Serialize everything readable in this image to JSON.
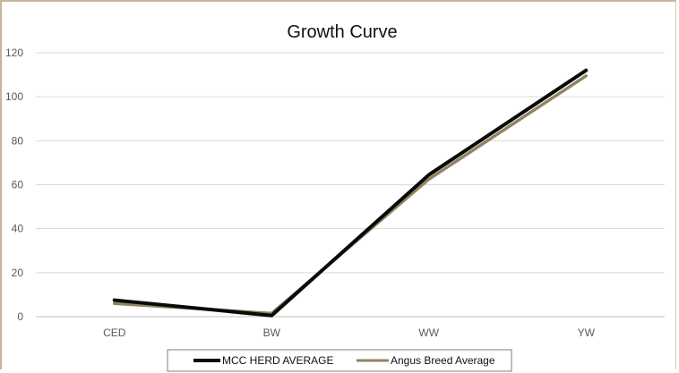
{
  "chart_data": {
    "type": "line",
    "title": "Growth Curve",
    "categories": [
      "CED",
      "BW",
      "WW",
      "YW"
    ],
    "series": [
      {
        "name": "MCC HERD AVERAGE",
        "values": [
          7.5,
          0.5,
          64.5,
          112
        ],
        "color": "#0a0a0a"
      },
      {
        "name": "Angus Breed Average",
        "values": [
          6,
          1.5,
          62.5,
          109.5
        ],
        "color": "#8f8560"
      }
    ],
    "ylim": [
      0,
      120
    ],
    "yticks": [
      "0",
      "20",
      "40",
      "60",
      "80",
      "100",
      "120"
    ],
    "grid": true,
    "legend": "bottom"
  }
}
